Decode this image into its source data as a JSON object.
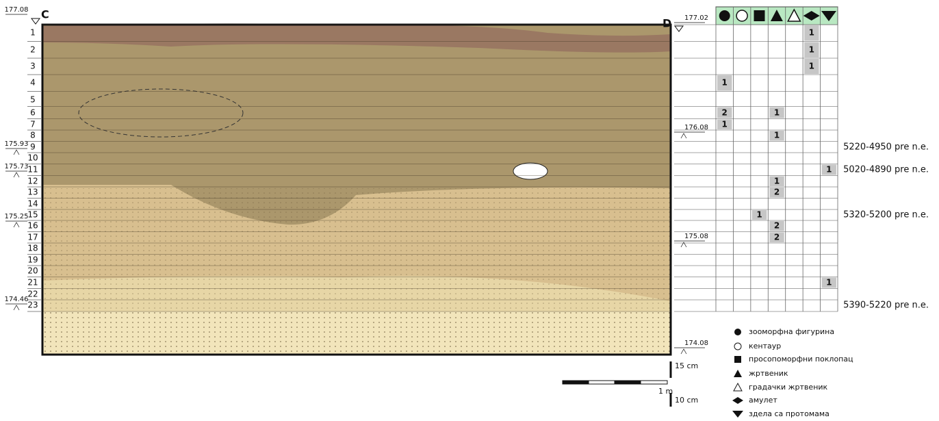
{
  "section": {
    "left_label": "C",
    "right_label": "D",
    "left_elevations": [
      "177.08",
      "175.93",
      "175.73",
      "175.25",
      "174.46"
    ],
    "right_elevations": [
      "177.02",
      "176.08",
      "175.08",
      "174.08"
    ],
    "layers": [
      "1",
      "2",
      "3",
      "4",
      "5",
      "6",
      "7",
      "8",
      "9",
      "10",
      "11",
      "12",
      "13",
      "14",
      "15",
      "16",
      "17",
      "18",
      "19",
      "20",
      "21",
      "22",
      "23"
    ]
  },
  "table": {
    "rows": [
      [
        null,
        null,
        null,
        null,
        null,
        1,
        null
      ],
      [
        null,
        null,
        null,
        null,
        null,
        1,
        null
      ],
      [
        null,
        null,
        null,
        null,
        null,
        1,
        null
      ],
      [
        1,
        null,
        null,
        null,
        null,
        null,
        null
      ],
      [
        null,
        null,
        null,
        null,
        null,
        null,
        null
      ],
      [
        2,
        null,
        null,
        1,
        null,
        null,
        null
      ],
      [
        1,
        null,
        null,
        null,
        null,
        null,
        null
      ],
      [
        null,
        null,
        null,
        1,
        null,
        null,
        null
      ],
      [
        null,
        null,
        null,
        null,
        null,
        null,
        null
      ],
      [
        null,
        null,
        null,
        null,
        null,
        null,
        null
      ],
      [
        null,
        null,
        null,
        null,
        null,
        null,
        1
      ],
      [
        null,
        null,
        null,
        1,
        null,
        null,
        null
      ],
      [
        null,
        null,
        null,
        2,
        null,
        null,
        null
      ],
      [
        null,
        null,
        null,
        null,
        null,
        null,
        null
      ],
      [
        null,
        null,
        1,
        null,
        null,
        null,
        null
      ],
      [
        null,
        null,
        null,
        2,
        null,
        null,
        null
      ],
      [
        null,
        null,
        null,
        2,
        null,
        null,
        null
      ],
      [
        null,
        null,
        null,
        null,
        null,
        null,
        null
      ],
      [
        null,
        null,
        null,
        null,
        null,
        null,
        null
      ],
      [
        null,
        null,
        null,
        null,
        null,
        null,
        null
      ],
      [
        null,
        null,
        null,
        null,
        null,
        null,
        1
      ],
      [
        null,
        null,
        null,
        null,
        null,
        null,
        null
      ],
      [
        null,
        null,
        null,
        null,
        null,
        null,
        null
      ]
    ]
  },
  "dates": [
    {
      "layer": "9",
      "label": "5220-4950 pre n.e."
    },
    {
      "layer": "11",
      "label": "5020-4890 pre n.e."
    },
    {
      "layer": "15",
      "label": "5320-5200 pre n.e."
    },
    {
      "layer": "23",
      "label": "5390-5220 pre n.e."
    }
  ],
  "scale": {
    "vertical_top": "15 cm",
    "horizontal": "1 m",
    "vertical_bottom": "10 cm"
  },
  "legend": {
    "items": [
      "зооморфна фигурина",
      "кентаур",
      "просопоморфни поклопац",
      "жртвеник",
      "градачки жртвеник",
      "амулет",
      "здела са протомама"
    ]
  }
}
